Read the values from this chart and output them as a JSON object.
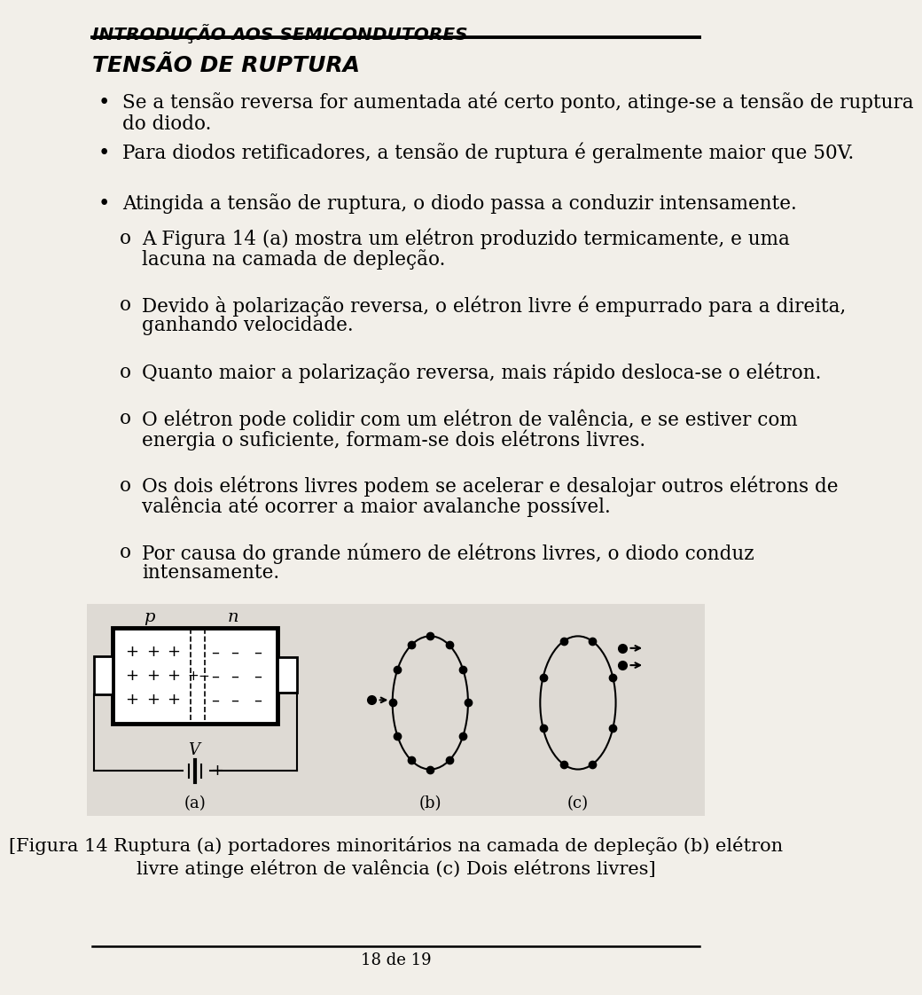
{
  "header": "INTRODUÇÃO AOS SEMICONDUTORES",
  "title": "TENSÃO DE RUPTURA",
  "bullet_points": [
    "Se a tensão reversa for aumentada até certo ponto, atinge-se a tensão de ruptura\ndo diodo.",
    "Para diodos retificadores, a tensão de ruptura é geralmente maior que 50V.",
    "Atingida a tensão de ruptura, o diodo passa a conduzir intensamente."
  ],
  "sub_bullets": [
    [
      "A Figura 14 (a) mostra um elétron produzido termicamente, e uma",
      "lacuna na camada de depleção."
    ],
    [
      "Devido à polarização reversa, o elétron livre é empurrado para a direita,",
      "ganhando velocidade."
    ],
    [
      "Quanto maior a polarização reversa, mais rápido desloca-se o elétron."
    ],
    [
      "O elétron pode colidir com um elétron de valência, e se estiver com",
      "energia o suficiente, formam-se dois elétrons livres."
    ],
    [
      "Os dois elétrons livres podem se acelerar e desalojar outros elétrons de",
      "valência até ocorrer a maior avalanche possível."
    ],
    [
      "Por causa do grande número de elétrons livres, o diodo conduz",
      "intensamente."
    ]
  ],
  "footer": "18 de 19",
  "bg_color": "#f0ede8",
  "text_color": "#000000",
  "page_bg": "#f2efe9"
}
